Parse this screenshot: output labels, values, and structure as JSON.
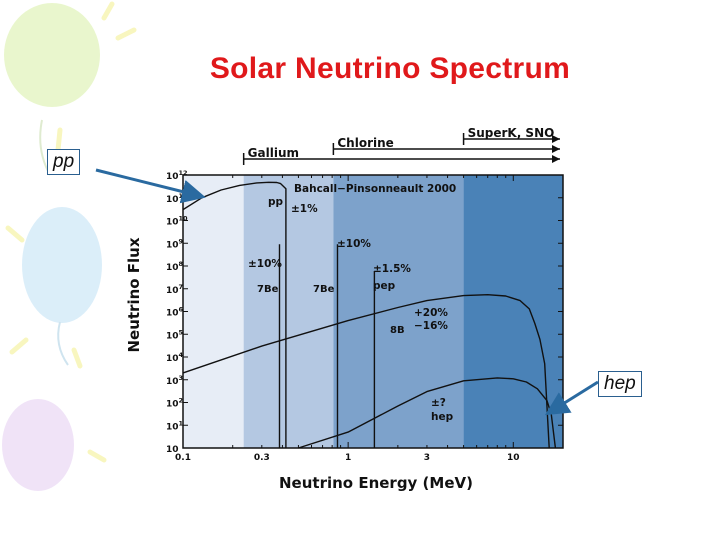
{
  "slide": {
    "title": "Solar Neutrino Spectrum",
    "callouts": {
      "pp": "pp",
      "hep": "hep"
    }
  },
  "colors": {
    "title": "#e0191b",
    "band_1": "#e7edf6",
    "band_2": "#b4c8e2",
    "band_3": "#7da2cb",
    "band_4": "#4a82b7",
    "arrow": "#2a6aa0"
  },
  "chart_data": {
    "type": "line",
    "xlabel": "Neutrino Energy (MeV)",
    "ylabel": "Neutrino Flux",
    "xscale": "log",
    "yscale": "log",
    "xlim": [
      0.1,
      20
    ],
    "ylim": [
      1,
      1000000000000.0
    ],
    "x_tick_labels": [
      "0.1",
      "0.3",
      "1",
      "3",
      "10"
    ],
    "x_ticks": [
      0.1,
      0.3,
      1,
      3,
      10
    ],
    "y_ticks": [
      1,
      10,
      100,
      1000,
      10000,
      100000,
      1000000,
      10000000,
      100000000,
      1000000000,
      10000000000,
      100000000000,
      1000000000000
    ],
    "y_tick_mantissa": "10",
    "y_tick_exponents": [
      "1",
      "2",
      "3",
      "4",
      "5",
      "6",
      "7",
      "8",
      "9",
      "10",
      "11",
      "12"
    ],
    "annotation": "Bahcall−Pinsonneault 2000",
    "detector_ranges": [
      {
        "label": "Gallium",
        "threshold": 0.233
      },
      {
        "label": "Chlorine",
        "threshold": 0.814
      },
      {
        "label": "SuperK, SNO",
        "threshold": 5.0
      }
    ],
    "series": [
      {
        "name": "pp",
        "uncertainty": "±1%",
        "x": [
          0.1,
          0.13,
          0.17,
          0.22,
          0.28,
          0.33,
          0.37,
          0.39,
          0.42,
          0.42
        ],
        "y": [
          30000000000,
          100000000000,
          220000000000,
          350000000000,
          450000000000,
          480000000000,
          470000000000,
          420000000000,
          250000000000,
          1
        ]
      },
      {
        "name": "7Be",
        "uncertainty": "±10%",
        "x": [
          0.384,
          0.862
        ],
        "line_top": 900000000
      },
      {
        "name": "pep",
        "uncertainty": "±1.5%",
        "x": [
          1.442
        ],
        "line_top": 60000000
      },
      {
        "name": "8B",
        "uncertainty": "+20% −16%",
        "x": [
          0.1,
          0.3,
          1,
          2,
          3,
          5,
          7,
          9,
          11,
          12.5,
          13.5,
          14.5,
          15.5,
          16.5
        ],
        "y": [
          2000,
          30000,
          400000,
          1500000,
          3000000,
          5000000,
          5500000,
          4800000,
          3000000,
          1300000,
          300000,
          60000,
          5000,
          1
        ]
      },
      {
        "name": "hep",
        "uncertainty": "±?",
        "x": [
          0.5,
          1,
          2,
          3,
          5,
          8,
          10,
          12,
          14,
          16,
          17,
          18
        ],
        "y": [
          1,
          5,
          70,
          300,
          900,
          1200,
          1100,
          800,
          400,
          120,
          30,
          1
        ]
      }
    ]
  }
}
